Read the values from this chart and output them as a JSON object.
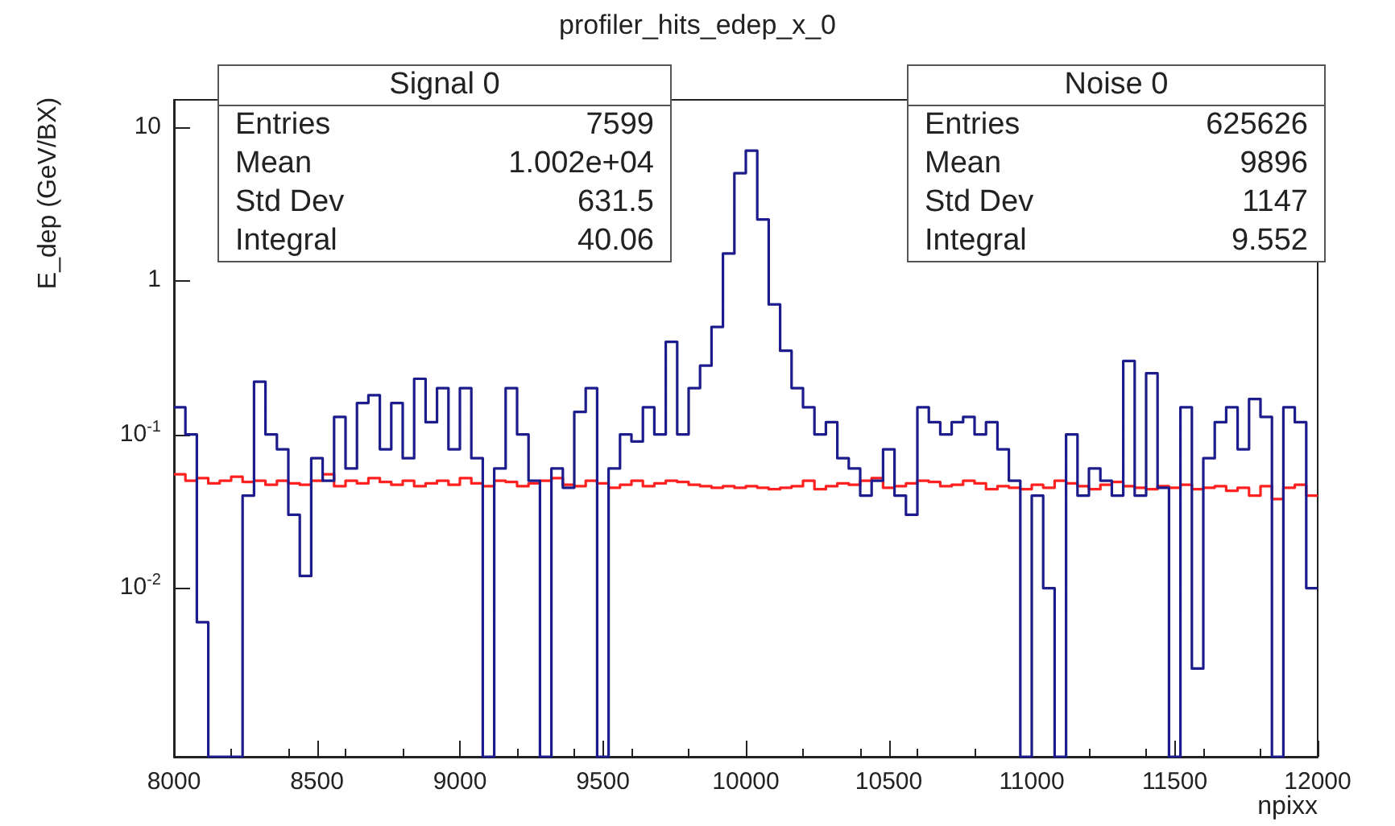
{
  "chart_data": {
    "type": "histogram",
    "title": "profiler_hits_edep_x_0",
    "xlabel": "npixx",
    "ylabel": "E_dep (GeV/BX)",
    "bins": [
      8000,
      8040,
      8080,
      8120,
      8160,
      8200,
      8240,
      8280,
      8320,
      8360,
      8400,
      8440,
      8480,
      8520,
      8560,
      8600,
      8640,
      8680,
      8720,
      8760,
      8800,
      8840,
      8880,
      8920,
      8960,
      9000,
      9040,
      9080,
      9120,
      9160,
      9200,
      9240,
      9280,
      9320,
      9360,
      9400,
      9440,
      9480,
      9520,
      9560,
      9600,
      9640,
      9680,
      9720,
      9760,
      9800,
      9840,
      9880,
      9920,
      9960,
      10000,
      10040,
      10080,
      10120,
      10160,
      10200,
      10240,
      10280,
      10320,
      10360,
      10400,
      10440,
      10480,
      10520,
      10560,
      10600,
      10640,
      10680,
      10720,
      10760,
      10800,
      10840,
      10880,
      10920,
      10960,
      11000,
      11040,
      11080,
      11120,
      11160,
      11200,
      11240,
      11280,
      11320,
      11360,
      11400,
      11440,
      11480,
      11520,
      11560,
      11600,
      11640,
      11680,
      11720,
      11760,
      11800,
      11840,
      11880,
      11920,
      11960,
      12000
    ],
    "series": [
      {
        "color": "#1c1c8c",
        "values": [
          0.15,
          0.1,
          0.006,
          null,
          null,
          null,
          0.04,
          0.22,
          0.1,
          0.08,
          0.03,
          0.012,
          0.07,
          0.05,
          0.13,
          0.06,
          0.16,
          0.18,
          0.08,
          0.16,
          0.07,
          0.23,
          0.12,
          0.2,
          0.08,
          0.2,
          0.07,
          null,
          0.06,
          0.2,
          0.1,
          0.05,
          null,
          0.06,
          0.045,
          0.14,
          0.2,
          null,
          0.06,
          0.1,
          0.09,
          0.15,
          0.1,
          0.4,
          0.1,
          0.2,
          0.28,
          0.5,
          1.5,
          5,
          7,
          2.5,
          0.7,
          0.35,
          0.2,
          0.15,
          0.1,
          0.12,
          0.07,
          0.06,
          0.04,
          0.05,
          0.08,
          0.04,
          0.03,
          0.15,
          0.12,
          0.1,
          0.12,
          0.13,
          0.1,
          0.12,
          0.08,
          0.05,
          null,
          0.04,
          0.01,
          null,
          0.1,
          0.04,
          0.06,
          0.05,
          0.04,
          0.3,
          0.04,
          0.25,
          0.045,
          null,
          0.15,
          0.003,
          0.07,
          0.12,
          0.15,
          0.08,
          0.17,
          0.13,
          null,
          0.15,
          0.12,
          0.01
        ]
      },
      {
        "color": "#ff2020",
        "values": [
          0.055,
          0.05,
          0.052,
          0.048,
          0.05,
          0.053,
          0.049,
          0.05,
          0.047,
          0.05,
          0.048,
          0.047,
          0.05,
          0.055,
          0.046,
          0.05,
          0.048,
          0.052,
          0.049,
          0.047,
          0.05,
          0.046,
          0.048,
          0.05,
          0.047,
          0.052,
          0.048,
          0.046,
          0.05,
          0.049,
          0.046,
          0.048,
          0.05,
          0.052,
          0.047,
          0.046,
          0.05,
          0.048,
          0.045,
          0.047,
          0.05,
          0.046,
          0.048,
          0.05,
          0.049,
          0.047,
          0.046,
          0.045,
          0.046,
          0.045,
          0.046,
          0.045,
          0.044,
          0.045,
          0.046,
          0.05,
          0.044,
          0.046,
          0.048,
          0.047,
          0.05,
          0.052,
          0.045,
          0.046,
          0.048,
          0.05,
          0.049,
          0.046,
          0.047,
          0.05,
          0.048,
          0.044,
          0.046,
          0.045,
          0.044,
          0.047,
          0.045,
          0.05,
          0.048,
          0.046,
          0.044,
          0.047,
          0.049,
          0.046,
          0.045,
          0.044,
          0.046,
          0.045,
          0.047,
          0.044,
          0.045,
          0.046,
          0.043,
          0.045,
          0.04,
          0.046,
          0.038,
          0.045,
          0.047,
          0.04
        ]
      }
    ],
    "log": "y",
    "xlim": [
      8000,
      12000
    ],
    "xticks": [
      8000,
      8500,
      9000,
      9500,
      10000,
      10500,
      11000,
      11500,
      12000
    ],
    "ylim": [
      0.0008,
      15
    ],
    "yticks": [
      {
        "value": 0.01,
        "label": "10$^{-2}$"
      },
      {
        "value": 0.1,
        "label": "10$^{-1}$"
      },
      1,
      10
    ],
    "annotations": [
      "Signal 0",
      "Entries 7599",
      "Mean 1.002e+04",
      "Std Dev 631.5",
      "Integral 40.06",
      "Noise 0",
      "Entries 625626",
      "Mean 9896",
      "Std Dev 1147",
      "Integral 9.552"
    ]
  }
}
